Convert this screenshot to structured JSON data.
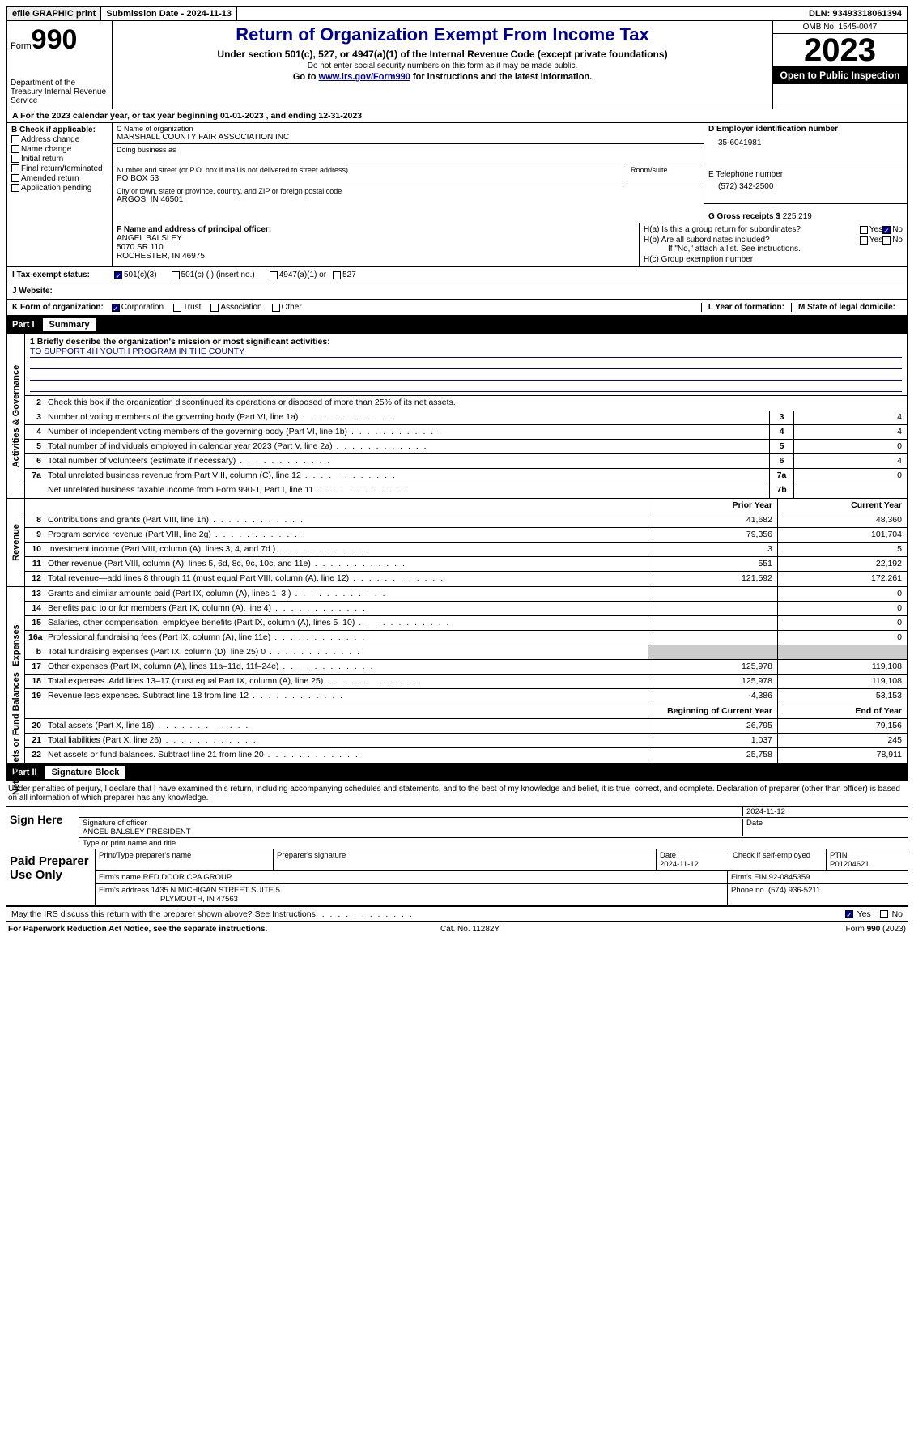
{
  "topbar": {
    "efile": "efile GRAPHIC print",
    "submission_label": "Submission Date - ",
    "submission_date": "2024-11-13",
    "dln_label": "DLN: ",
    "dln": "93493318061394"
  },
  "header": {
    "form_word": "Form",
    "form_num": "990",
    "dept": "Department of the Treasury Internal Revenue Service",
    "title": "Return of Organization Exempt From Income Tax",
    "subtitle": "Under section 501(c), 527, or 4947(a)(1) of the Internal Revenue Code (except private foundations)",
    "note": "Do not enter social security numbers on this form as it may be made public.",
    "goto_pre": "Go to ",
    "goto_link": "www.irs.gov/Form990",
    "goto_post": " for instructions and the latest information.",
    "omb": "OMB No. 1545-0047",
    "year": "2023",
    "inspection": "Open to Public Inspection"
  },
  "period": {
    "a_label": "A For the 2023 calendar year, or tax year beginning ",
    "begin": "01-01-2023",
    "mid": " , and ending ",
    "end": "12-31-2023"
  },
  "sectionB": {
    "label": "B Check if applicable:",
    "items": [
      "Address change",
      "Name change",
      "Initial return",
      "Final return/terminated",
      "Amended return",
      "Application pending"
    ]
  },
  "sectionC": {
    "name_label": "C Name of organization",
    "name": "MARSHALL COUNTY FAIR ASSOCIATION INC",
    "dba_label": "Doing business as",
    "addr_label": "Number and street (or P.O. box if mail is not delivered to street address)",
    "room_label": "Room/suite",
    "addr": "PO BOX 53",
    "city_label": "City or town, state or province, country, and ZIP or foreign postal code",
    "city": "ARGOS, IN  46501"
  },
  "sectionD": {
    "ein_label": "D Employer identification number",
    "ein": "35-6041981",
    "phone_label": "E Telephone number",
    "phone": "(572) 342-2500",
    "gross_label": "G Gross receipts $ ",
    "gross": "225,219"
  },
  "sectionF": {
    "label": "F  Name and address of principal officer:",
    "name": "ANGEL BALSLEY",
    "addr1": "5070 SR 110",
    "addr2": "ROCHESTER, IN  46975"
  },
  "sectionH": {
    "ha_label": "H(a)  Is this a group return for subordinates?",
    "hb_label": "H(b)  Are all subordinates included?",
    "hb_note": "If \"No,\" attach a list. See instructions.",
    "hc_label": "H(c)  Group exemption number ",
    "yes": "Yes",
    "no": "No"
  },
  "sectionI": {
    "label": "I  Tax-exempt status:",
    "opt1": "501(c)(3)",
    "opt2": "501(c) (  ) (insert no.)",
    "opt3": "4947(a)(1) or",
    "opt4": "527"
  },
  "sectionJ": {
    "label": "J  Website: "
  },
  "sectionK": {
    "label": "K Form of organization:",
    "opts": [
      "Corporation",
      "Trust",
      "Association",
      "Other"
    ],
    "l_label": "L Year of formation:",
    "m_label": "M State of legal domicile:"
  },
  "partI": {
    "num": "Part I",
    "title": "Summary",
    "mission_label": "1   Briefly describe the organization's mission or most significant activities:",
    "mission": "TO SUPPORT 4H YOUTH PROGRAM IN THE COUNTY",
    "line2": "Check this box      if the organization discontinued its operations or disposed of more than 25% of its net assets.",
    "groups": {
      "gov": "Activities & Governance",
      "rev": "Revenue",
      "exp": "Expenses",
      "net": "Net Assets or Fund Balances"
    },
    "gov_rows": [
      {
        "n": "3",
        "d": "Number of voting members of the governing body (Part VI, line 1a)",
        "b": "3",
        "v": "4"
      },
      {
        "n": "4",
        "d": "Number of independent voting members of the governing body (Part VI, line 1b)",
        "b": "4",
        "v": "4"
      },
      {
        "n": "5",
        "d": "Total number of individuals employed in calendar year 2023 (Part V, line 2a)",
        "b": "5",
        "v": "0"
      },
      {
        "n": "6",
        "d": "Total number of volunteers (estimate if necessary)",
        "b": "6",
        "v": "4"
      },
      {
        "n": "7a",
        "d": "Total unrelated business revenue from Part VIII, column (C), line 12",
        "b": "7a",
        "v": "0"
      },
      {
        "n": "",
        "d": "Net unrelated business taxable income from Form 990-T, Part I, line 11",
        "b": "7b",
        "v": ""
      }
    ],
    "col_prior": "Prior Year",
    "col_curr": "Current Year",
    "rev_rows": [
      {
        "n": "8",
        "d": "Contributions and grants (Part VIII, line 1h)",
        "p": "41,682",
        "c": "48,360"
      },
      {
        "n": "9",
        "d": "Program service revenue (Part VIII, line 2g)",
        "p": "79,356",
        "c": "101,704"
      },
      {
        "n": "10",
        "d": "Investment income (Part VIII, column (A), lines 3, 4, and 7d )",
        "p": "3",
        "c": "5"
      },
      {
        "n": "11",
        "d": "Other revenue (Part VIII, column (A), lines 5, 6d, 8c, 9c, 10c, and 11e)",
        "p": "551",
        "c": "22,192"
      },
      {
        "n": "12",
        "d": "Total revenue—add lines 8 through 11 (must equal Part VIII, column (A), line 12)",
        "p": "121,592",
        "c": "172,261"
      }
    ],
    "exp_rows": [
      {
        "n": "13",
        "d": "Grants and similar amounts paid (Part IX, column (A), lines 1–3 )",
        "p": "",
        "c": "0"
      },
      {
        "n": "14",
        "d": "Benefits paid to or for members (Part IX, column (A), line 4)",
        "p": "",
        "c": "0"
      },
      {
        "n": "15",
        "d": "Salaries, other compensation, employee benefits (Part IX, column (A), lines 5–10)",
        "p": "",
        "c": "0"
      },
      {
        "n": "16a",
        "d": "Professional fundraising fees (Part IX, column (A), line 11e)",
        "p": "",
        "c": "0"
      },
      {
        "n": "b",
        "d": "Total fundraising expenses (Part IX, column (D), line 25) 0",
        "p": "GREY",
        "c": "GREY"
      },
      {
        "n": "17",
        "d": "Other expenses (Part IX, column (A), lines 11a–11d, 11f–24e)",
        "p": "125,978",
        "c": "119,108"
      },
      {
        "n": "18",
        "d": "Total expenses. Add lines 13–17 (must equal Part IX, column (A), line 25)",
        "p": "125,978",
        "c": "119,108"
      },
      {
        "n": "19",
        "d": "Revenue less expenses. Subtract line 18 from line 12",
        "p": "-4,386",
        "c": "53,153"
      }
    ],
    "col_begin": "Beginning of Current Year",
    "col_end": "End of Year",
    "net_rows": [
      {
        "n": "20",
        "d": "Total assets (Part X, line 16)",
        "p": "26,795",
        "c": "79,156"
      },
      {
        "n": "21",
        "d": "Total liabilities (Part X, line 26)",
        "p": "1,037",
        "c": "245"
      },
      {
        "n": "22",
        "d": "Net assets or fund balances. Subtract line 21 from line 20",
        "p": "25,758",
        "c": "78,911"
      }
    ]
  },
  "partII": {
    "num": "Part II",
    "title": "Signature Block",
    "penalty": "Under penalties of perjury, I declare that I have examined this return, including accompanying schedules and statements, and to the best of my knowledge and belief, it is true, correct, and complete. Declaration of preparer (other than officer) is based on all information of which preparer has any knowledge."
  },
  "sign": {
    "here": "Sign Here",
    "sig_label": "Signature of officer",
    "date_label": "Date",
    "date": "2024-11-12",
    "officer": "ANGEL BALSLEY PRESIDENT",
    "type_label": "Type or print name and title"
  },
  "prep": {
    "label": "Paid Preparer Use Only",
    "name_label": "Print/Type preparer's name",
    "sig_label": "Preparer's signature",
    "date_label": "Date",
    "date": "2024-11-12",
    "check_label": "Check        if self-employed",
    "ptin_label": "PTIN",
    "ptin": "P01204621",
    "firm_name_label": "Firm's name    ",
    "firm_name": "RED DOOR CPA GROUP",
    "firm_ein_label": "Firm's EIN ",
    "firm_ein": "92-0845359",
    "firm_addr_label": "Firm's address ",
    "firm_addr1": "1435 N MICHIGAN STREET SUITE 5",
    "firm_addr2": "PLYMOUTH, IN  47563",
    "phone_label": "Phone no. ",
    "phone": "(574) 936-5211"
  },
  "may": {
    "text": "May the IRS discuss this return with the preparer shown above? See Instructions.",
    "yes": "Yes",
    "no": "No"
  },
  "footer": {
    "left": "For Paperwork Reduction Act Notice, see the separate instructions.",
    "mid": "Cat. No. 11282Y",
    "right_pre": "Form ",
    "right_form": "990",
    "right_post": " (2023)"
  }
}
